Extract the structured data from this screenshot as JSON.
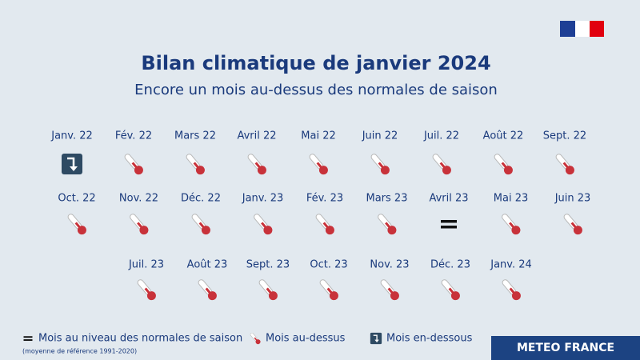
{
  "header": {
    "title": "Bilan climatique de janvier 2024",
    "subtitle": "Encore un mois au-dessus des normales de saison"
  },
  "rows": [
    [
      {
        "label": "Janv. 22",
        "icon": "arrow-down"
      },
      {
        "label": "Fév. 22",
        "icon": "thermometer"
      },
      {
        "label": "Mars 22",
        "icon": "thermometer"
      },
      {
        "label": "Avril 22",
        "icon": "thermometer"
      },
      {
        "label": "Mai 22",
        "icon": "thermometer"
      },
      {
        "label": "Juin 22",
        "icon": "thermometer"
      },
      {
        "label": "Juil. 22",
        "icon": "thermometer"
      },
      {
        "label": "Août 22",
        "icon": "thermometer"
      },
      {
        "label": "Sept. 22",
        "icon": "thermometer"
      }
    ],
    [
      {
        "label": "Oct. 22",
        "icon": "thermometer"
      },
      {
        "label": "Nov. 22",
        "icon": "thermometer"
      },
      {
        "label": "Déc. 22",
        "icon": "thermometer"
      },
      {
        "label": "Janv. 23",
        "icon": "thermometer"
      },
      {
        "label": "Fév. 23",
        "icon": "thermometer"
      },
      {
        "label": "Mars 23",
        "icon": "thermometer"
      },
      {
        "label": "Avril 23",
        "icon": "equal"
      },
      {
        "label": "Mai 23",
        "icon": "thermometer"
      },
      {
        "label": "Juin 23",
        "icon": "thermometer"
      }
    ],
    [
      {
        "label": "Juil. 23",
        "icon": "thermometer"
      },
      {
        "label": "Août 23",
        "icon": "thermometer"
      },
      {
        "label": "Sept. 23",
        "icon": "thermometer"
      },
      {
        "label": "Oct. 23",
        "icon": "thermometer"
      },
      {
        "label": "Nov. 23",
        "icon": "thermometer"
      },
      {
        "label": "Déc. 23",
        "icon": "thermometer"
      },
      {
        "label": "Janv. 24",
        "icon": "thermometer"
      }
    ]
  ],
  "legend": [
    {
      "icon": "equal",
      "label": "Mois au niveau des normales de saison"
    },
    {
      "icon": "thermometer",
      "label": "Mois au-dessus"
    },
    {
      "icon": "arrow-down",
      "label": "Mois en-dessous"
    }
  ],
  "footnote": "(moyenne de référence 1991-2020)",
  "brand": "METEO FRANCE"
}
